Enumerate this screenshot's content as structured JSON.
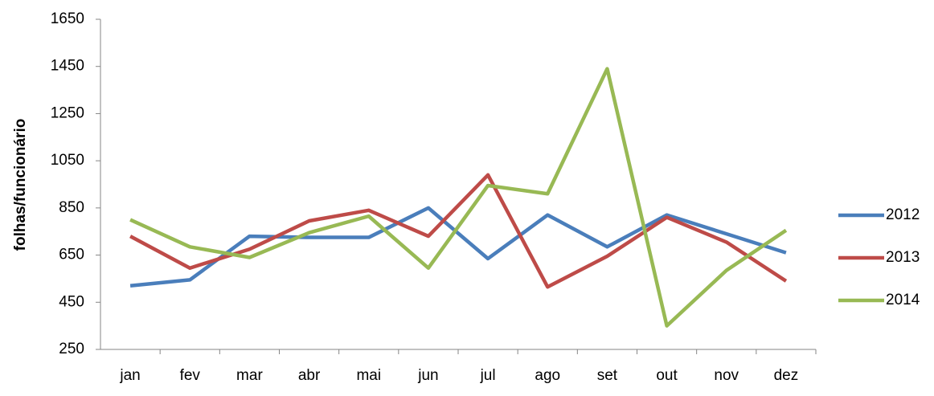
{
  "chart_data": {
    "type": "line",
    "y_label": "folhas/funcionário",
    "categories": [
      "jan",
      "fev",
      "mar",
      "abr",
      "mai",
      "jun",
      "jul",
      "ago",
      "set",
      "out",
      "nov",
      "dez"
    ],
    "series": [
      {
        "name": "2012",
        "color": "#4a7ebb",
        "values": [
          520,
          545,
          730,
          725,
          725,
          850,
          635,
          820,
          685,
          820,
          740,
          660
        ]
      },
      {
        "name": "2013",
        "color": "#be4b48",
        "values": [
          730,
          595,
          675,
          795,
          840,
          730,
          990,
          515,
          645,
          810,
          705,
          540
        ]
      },
      {
        "name": "2014",
        "color": "#98b954",
        "values": [
          800,
          685,
          640,
          745,
          815,
          595,
          945,
          910,
          1440,
          350,
          585,
          755
        ]
      }
    ],
    "ylim": [
      250,
      1650
    ],
    "yticks": [
      250,
      450,
      650,
      850,
      1050,
      1250,
      1450,
      1650
    ],
    "grid": false,
    "legend": "right"
  }
}
